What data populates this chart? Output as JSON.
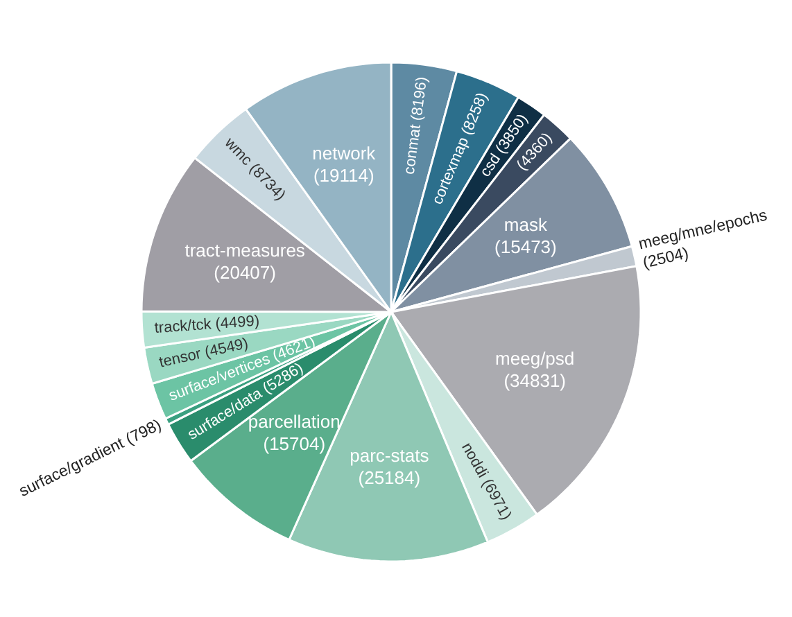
{
  "chart_data": {
    "type": "pie",
    "categories": [
      "conmat",
      "cortexmap",
      "csd",
      null,
      "mask",
      "meeg/mne/epochs",
      "meeg/psd",
      "noddi",
      "parc-stats",
      "parcellation",
      "surface/data",
      "surface/gradient",
      "surface/vertices",
      "tensor",
      "track/tck",
      "tract-measures",
      "wmc",
      "network"
    ],
    "values": [
      8196,
      8258,
      3850,
      4360,
      15473,
      2504,
      34831,
      6971,
      25184,
      15704,
      5286,
      798,
      4621,
      4549,
      4499,
      20407,
      8734,
      19114
    ],
    "value_labels": [
      "(8196)",
      "(8258)",
      "(3850)",
      "(4360)",
      "(15473)",
      "(2504)",
      "(34831)",
      "(6971)",
      "(25184)",
      "(15704)",
      "(5286)",
      "(798)",
      "(4621)",
      "(4549)",
      "(4499)",
      "(20407)",
      "(8734)",
      "(19114)"
    ],
    "colors": [
      "#5e8aa3",
      "#2c6f8c",
      "#0f2f45",
      "#3a4a60",
      "#8090a2",
      "#c0c8d0",
      "#ababb0",
      "#cae6de",
      "#8fc8b4",
      "#5aae8c",
      "#2a8c6c",
      "#3aa080",
      "#6cc4a4",
      "#9ad8c2",
      "#b2e2d2",
      "#a09ea5",
      "#c8d8e0",
      "#94b4c4"
    ]
  }
}
